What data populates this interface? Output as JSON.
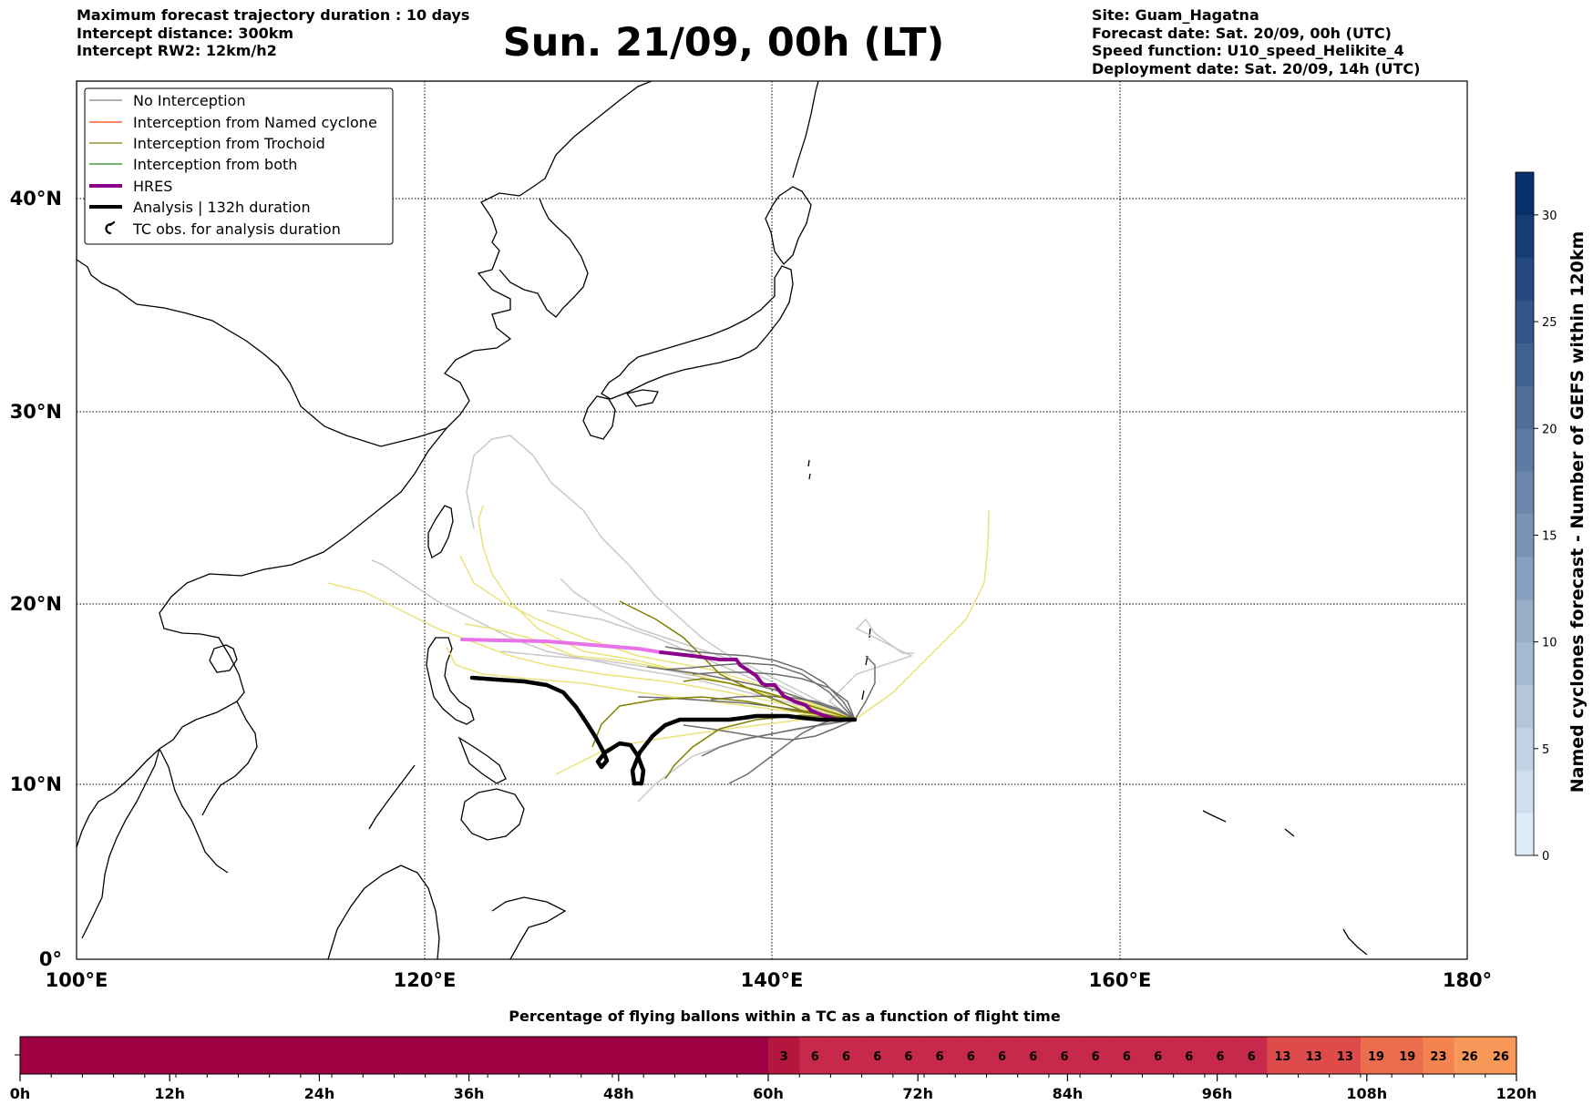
{
  "header": {
    "left": [
      "Maximum forecast trajectory duration : 10 days",
      "Intercept distance: 300km",
      "Intercept RW2: 12km/h2"
    ],
    "title": "Sun. 21/09, 00h (LT)",
    "right": [
      "Site: Guam_Hagatna",
      "Forecast date: Sat. 20/09, 00h (UTC)",
      "Speed function: U10_speed_Helikite_4",
      "Deployment date: Sat. 20/09, 14h (UTC)"
    ]
  },
  "map": {
    "lat_labels": [
      "0°",
      "10°N",
      "20°N",
      "30°N",
      "40°N"
    ],
    "lon_labels": [
      "100°E",
      "120°E",
      "140°E",
      "160°E",
      "180°"
    ],
    "extent": {
      "lon": [
        100,
        180
      ],
      "lat": [
        0,
        49
      ]
    },
    "legend": [
      {
        "label": "No Interception",
        "color": "#808080",
        "style": "thin"
      },
      {
        "label": "Interception from Named cyclone",
        "color": "#ff4500",
        "style": "thin"
      },
      {
        "label": "Interception from Trochoid",
        "color": "#808000",
        "style": "thin"
      },
      {
        "label": "Interception from both",
        "color": "#228b22",
        "style": "thin"
      },
      {
        "label": "HRES",
        "color": "#8b008b",
        "style": "thick"
      },
      {
        "label": "Analysis | 132h duration",
        "color": "#000000",
        "style": "thick"
      },
      {
        "label": "TC obs. for analysis duration",
        "color": "#000000",
        "style": "marker",
        "icon": "cyclone-icon"
      }
    ]
  },
  "colorbar": {
    "label": "Named cyclones forecast - Number of GEFS within 120km",
    "ticks": [
      "0",
      "5",
      "10",
      "15",
      "20",
      "25",
      "30"
    ],
    "range": [
      0,
      32
    ]
  },
  "timeline": {
    "title": "Percentage of flying ballons within a TC as a function of flight time",
    "values": [
      "3",
      "6",
      "6",
      "6",
      "6",
      "6",
      "6",
      "6",
      "6",
      "6",
      "6",
      "6",
      "6",
      "6",
      "6",
      "6",
      "13",
      "13",
      "13",
      "19",
      "19",
      "23",
      "26",
      "26"
    ],
    "tick_labels": [
      "0h",
      "12h",
      "24h",
      "36h",
      "48h",
      "60h",
      "72h",
      "84h",
      "96h",
      "108h",
      "120h"
    ]
  }
}
